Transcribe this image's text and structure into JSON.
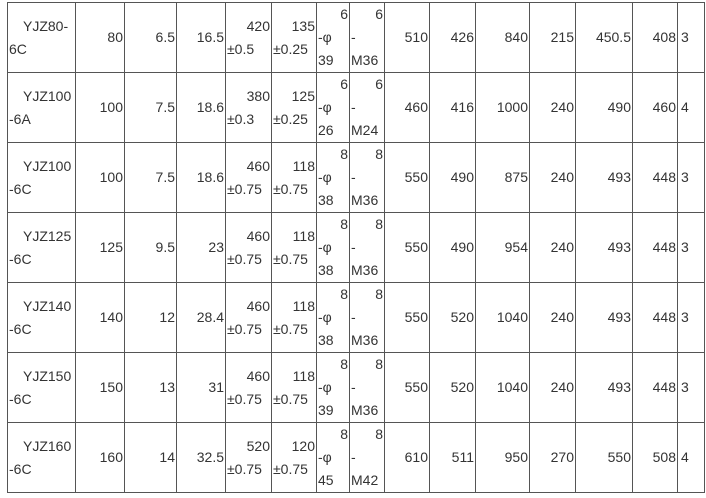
{
  "rows": [
    {
      "model": [
        "YJZ80-",
        "6C"
      ],
      "c1": "80",
      "c2": "6.5",
      "c3": "16.5",
      "c4": [
        "420",
        "±0.5"
      ],
      "c5": [
        "135",
        "±0.25"
      ],
      "c6": [
        "6",
        "-φ",
        "39"
      ],
      "c7": [
        "6",
        "-",
        "M36"
      ],
      "c8": "510",
      "c9": "426",
      "c10": "840",
      "c11": "215",
      "c12": "450.5",
      "c13": "408",
      "c14": "3"
    },
    {
      "model": [
        "YJZ100",
        "-6A"
      ],
      "c1": "100",
      "c2": "7.5",
      "c3": "18.6",
      "c4": [
        "380",
        "±0.3"
      ],
      "c5": [
        "125",
        "±0.25"
      ],
      "c6": [
        "6",
        "-φ",
        "26"
      ],
      "c7": [
        "6",
        "-",
        "M24"
      ],
      "c8": "460",
      "c9": "416",
      "c10": "1000",
      "c11": "240",
      "c12": "490",
      "c13": "460",
      "c14": "4"
    },
    {
      "model": [
        "YJZ100",
        "-6C"
      ],
      "c1": "100",
      "c2": "7.5",
      "c3": "18.6",
      "c4": [
        "460",
        "±0.75"
      ],
      "c5": [
        "118",
        "±0.75"
      ],
      "c6": [
        "8",
        "-φ",
        "38"
      ],
      "c7": [
        "8",
        "-",
        "M36"
      ],
      "c8": "550",
      "c9": "490",
      "c10": "875",
      "c11": "240",
      "c12": "493",
      "c13": "448",
      "c14": "3"
    },
    {
      "model": [
        "YJZ125",
        "-6C"
      ],
      "c1": "125",
      "c2": "9.5",
      "c3": "23",
      "c4": [
        "460",
        "±0.75"
      ],
      "c5": [
        "118",
        "±0.75"
      ],
      "c6": [
        "8",
        "-φ",
        "38"
      ],
      "c7": [
        "8",
        "-",
        "M36"
      ],
      "c8": "550",
      "c9": "490",
      "c10": "954",
      "c11": "240",
      "c12": "493",
      "c13": "448",
      "c14": "3"
    },
    {
      "model": [
        "YJZ140",
        "-6C"
      ],
      "c1": "140",
      "c2": "12",
      "c3": "28.4",
      "c4": [
        "460",
        "±0.75"
      ],
      "c5": [
        "118",
        "±0.75"
      ],
      "c6": [
        "8",
        "-φ",
        "38"
      ],
      "c7": [
        "8",
        "-",
        "M36"
      ],
      "c8": "550",
      "c9": "520",
      "c10": "1040",
      "c11": "240",
      "c12": "493",
      "c13": "448",
      "c14": "3"
    },
    {
      "model": [
        "YJZ150",
        "-6C"
      ],
      "c1": "150",
      "c2": "13",
      "c3": "31",
      "c4": [
        "460",
        "±0.75"
      ],
      "c5": [
        "118",
        "±0.75"
      ],
      "c6": [
        "8",
        "-φ",
        "39"
      ],
      "c7": [
        "8",
        "-",
        "M36"
      ],
      "c8": "550",
      "c9": "520",
      "c10": "1040",
      "c11": "240",
      "c12": "493",
      "c13": "448",
      "c14": "3"
    },
    {
      "model": [
        "YJZ160",
        "-6C"
      ],
      "c1": "160",
      "c2": "14",
      "c3": "32.5",
      "c4": [
        "520",
        "±0.75"
      ],
      "c5": [
        "120",
        "±0.75"
      ],
      "c6": [
        "8",
        "-φ",
        "45"
      ],
      "c7": [
        "8",
        "-",
        "M42"
      ],
      "c8": "610",
      "c9": "511",
      "c10": "950",
      "c11": "270",
      "c12": "550",
      "c13": "508",
      "c14": "4"
    }
  ]
}
